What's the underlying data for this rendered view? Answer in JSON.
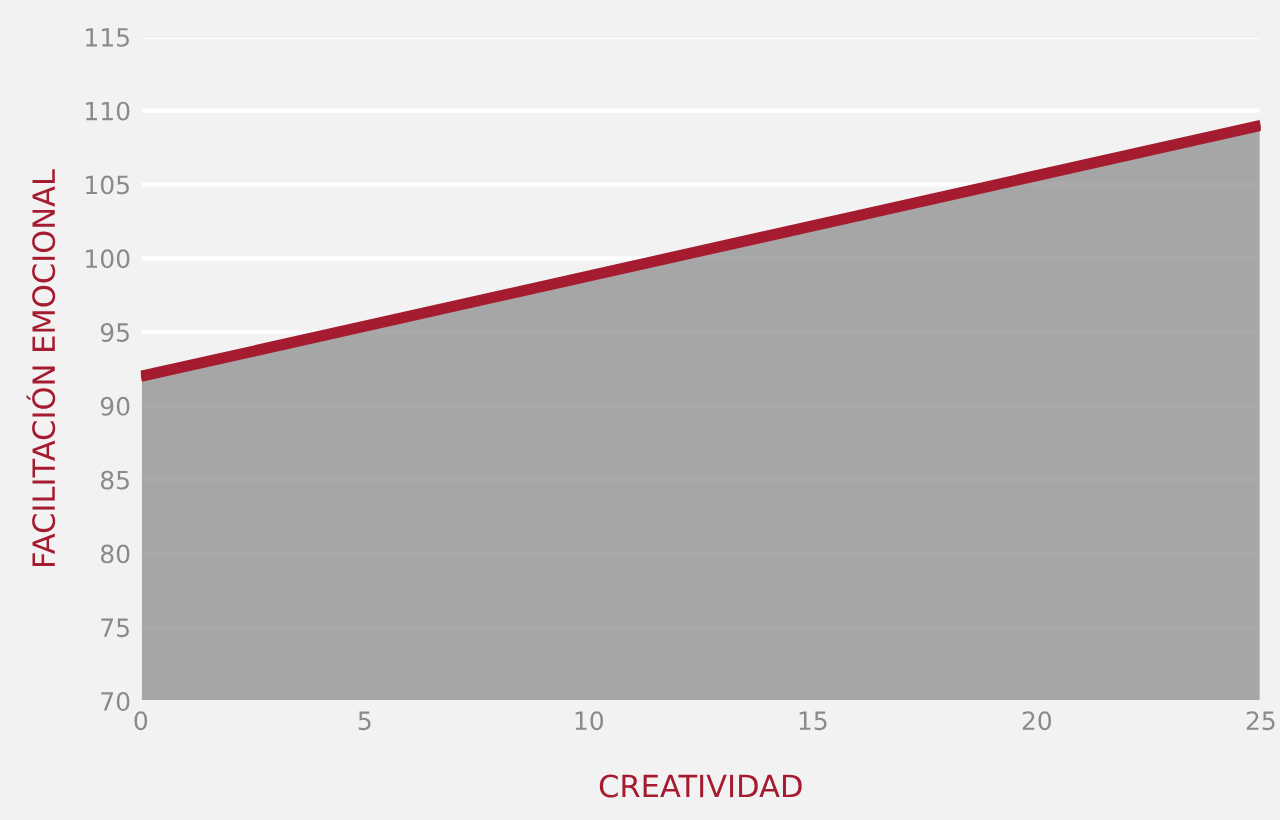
{
  "chart_data": {
    "type": "area",
    "xlabel": "CREATIVIDAD",
    "ylabel": "FACILITACIÓN EMOCIONAL",
    "x": [
      0,
      25
    ],
    "series": [
      {
        "color": "#a51c30",
        "values": [
          92,
          109
        ]
      }
    ],
    "xlim": [
      0,
      25
    ],
    "xticks": [
      0,
      5,
      10,
      15,
      20,
      25
    ],
    "ylim": [
      70,
      115
    ],
    "yticks": [
      70,
      75,
      80,
      85,
      90,
      95,
      100,
      105,
      110,
      115
    ],
    "grid": "y",
    "legend": false,
    "marker": "none",
    "line_style": "solid"
  }
}
